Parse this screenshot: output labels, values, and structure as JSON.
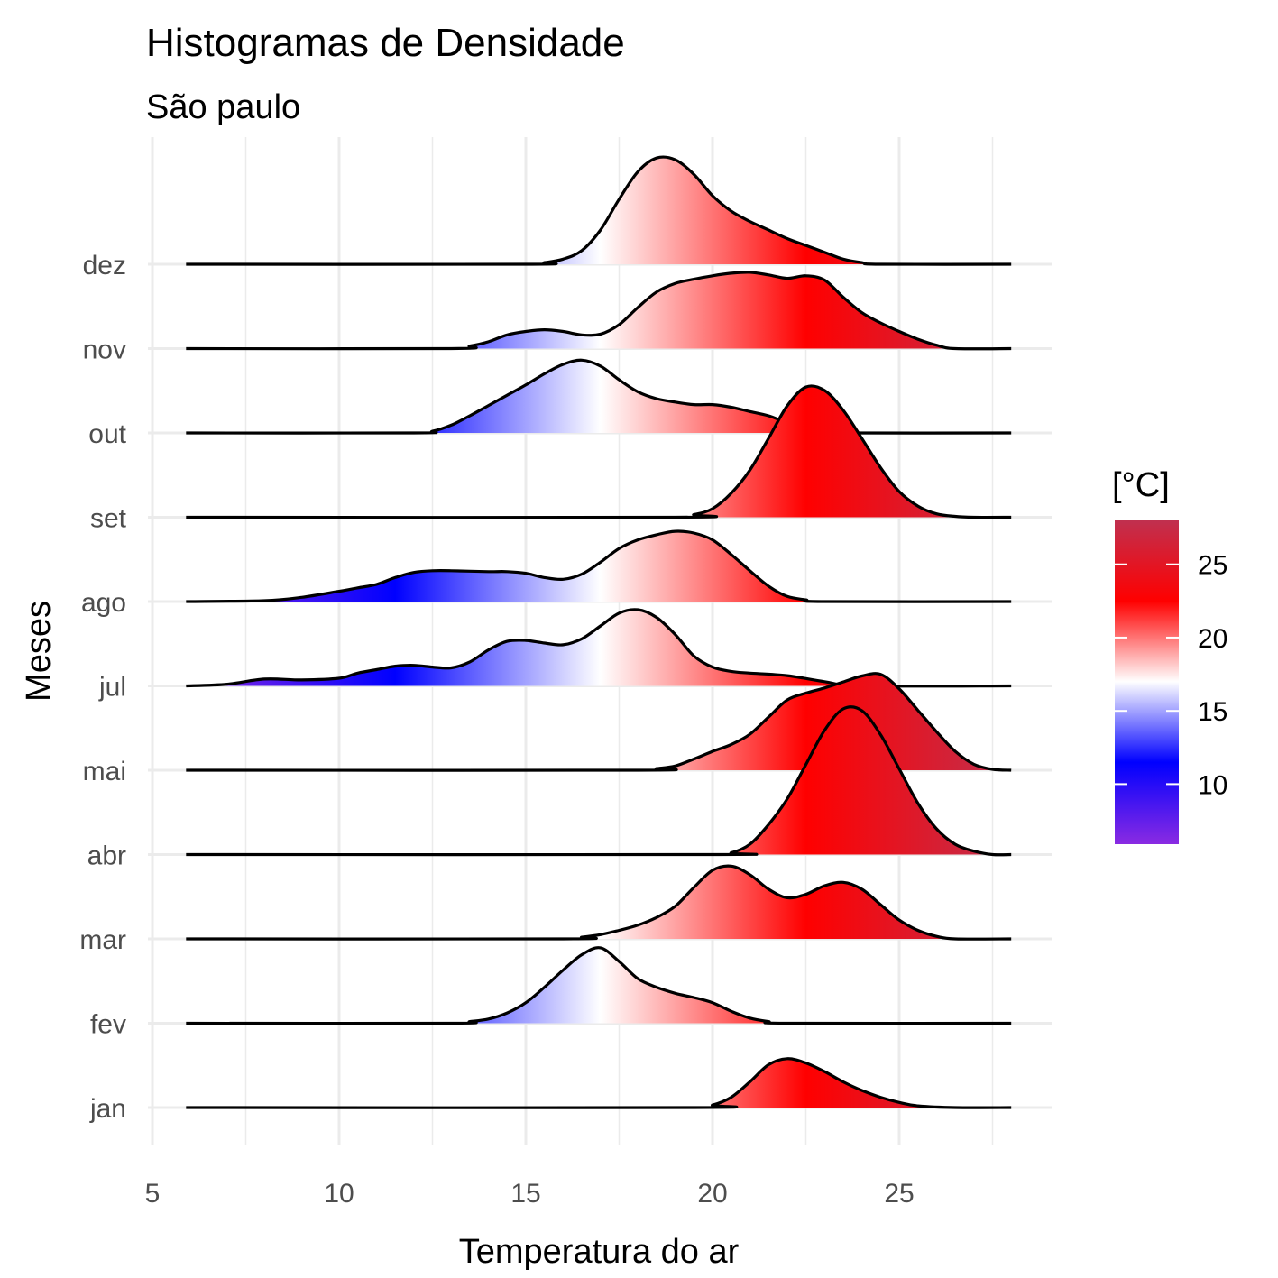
{
  "chart_data": {
    "type": "ridgeline",
    "title": "Histogramas de Densidade",
    "subtitle": "São paulo",
    "xlabel": "Temperatura do ar",
    "ylabel": "Meses",
    "xlim": [
      5,
      28
    ],
    "x_ticks": [
      5,
      10,
      15,
      20,
      25
    ],
    "x_tick_labels": [
      "5",
      "10",
      "15",
      "20",
      "25"
    ],
    "x_range": [
      5.9,
      28.0
    ],
    "grid": true,
    "legend": {
      "title": "[°C]",
      "position": "right",
      "ticks": [
        10,
        15,
        20,
        25
      ],
      "tick_labels": [
        "10",
        "15",
        "20",
        "25"
      ],
      "range": [
        5.9,
        28.0
      ]
    },
    "color_scale": [
      {
        "value": 5.9,
        "color": "#8a2be2"
      },
      {
        "value": 11.5,
        "color": "#0000ff"
      },
      {
        "value": 17.0,
        "color": "#ffffff"
      },
      {
        "value": 22.5,
        "color": "#ff0000"
      },
      {
        "value": 28.0,
        "color": "#c0304f"
      }
    ],
    "series": [
      {
        "name": "jan",
        "points": [
          [
            5.9,
            0
          ],
          [
            19.5,
            0
          ],
          [
            20,
            0.03
          ],
          [
            20.5,
            0.12
          ],
          [
            21,
            0.3
          ],
          [
            21.5,
            0.5
          ],
          [
            22,
            0.57
          ],
          [
            22.5,
            0.52
          ],
          [
            23,
            0.42
          ],
          [
            23.5,
            0.3
          ],
          [
            24,
            0.2
          ],
          [
            24.5,
            0.12
          ],
          [
            25,
            0.06
          ],
          [
            25.5,
            0.02
          ],
          [
            26.5,
            0
          ],
          [
            28,
            0
          ]
        ]
      },
      {
        "name": "fev",
        "points": [
          [
            5.9,
            0
          ],
          [
            13,
            0
          ],
          [
            13.5,
            0.02
          ],
          [
            14,
            0.05
          ],
          [
            14.5,
            0.12
          ],
          [
            15,
            0.24
          ],
          [
            15.5,
            0.42
          ],
          [
            16,
            0.62
          ],
          [
            16.5,
            0.8
          ],
          [
            17,
            0.88
          ],
          [
            17.5,
            0.72
          ],
          [
            18,
            0.52
          ],
          [
            18.5,
            0.42
          ],
          [
            19,
            0.35
          ],
          [
            19.5,
            0.3
          ],
          [
            20,
            0.24
          ],
          [
            20.5,
            0.14
          ],
          [
            21,
            0.06
          ],
          [
            21.5,
            0.02
          ],
          [
            22,
            0
          ],
          [
            28,
            0
          ]
        ]
      },
      {
        "name": "mar",
        "points": [
          [
            5.9,
            0
          ],
          [
            16,
            0
          ],
          [
            16.5,
            0.02
          ],
          [
            17,
            0.05
          ],
          [
            17.5,
            0.1
          ],
          [
            18,
            0.16
          ],
          [
            18.5,
            0.25
          ],
          [
            19,
            0.38
          ],
          [
            19.5,
            0.6
          ],
          [
            20,
            0.8
          ],
          [
            20.5,
            0.85
          ],
          [
            21,
            0.75
          ],
          [
            21.5,
            0.58
          ],
          [
            22,
            0.48
          ],
          [
            22.5,
            0.52
          ],
          [
            23,
            0.62
          ],
          [
            23.5,
            0.66
          ],
          [
            24,
            0.58
          ],
          [
            24.5,
            0.4
          ],
          [
            25,
            0.22
          ],
          [
            25.5,
            0.1
          ],
          [
            26,
            0.03
          ],
          [
            26.5,
            0
          ],
          [
            28,
            0
          ]
        ]
      },
      {
        "name": "abr",
        "points": [
          [
            5.9,
            0
          ],
          [
            20,
            0
          ],
          [
            20.5,
            0.02
          ],
          [
            21,
            0.12
          ],
          [
            21.5,
            0.35
          ],
          [
            22,
            0.65
          ],
          [
            22.5,
            1.05
          ],
          [
            23,
            1.45
          ],
          [
            23.5,
            1.7
          ],
          [
            24,
            1.68
          ],
          [
            24.5,
            1.4
          ],
          [
            25,
            1.0
          ],
          [
            25.5,
            0.6
          ],
          [
            26,
            0.3
          ],
          [
            26.5,
            0.12
          ],
          [
            27,
            0.04
          ],
          [
            27.5,
            0
          ],
          [
            28,
            0
          ]
        ]
      },
      {
        "name": "mai",
        "points": [
          [
            5.9,
            0
          ],
          [
            18,
            0
          ],
          [
            18.5,
            0.02
          ],
          [
            19,
            0.05
          ],
          [
            19.5,
            0.13
          ],
          [
            20,
            0.22
          ],
          [
            20.5,
            0.3
          ],
          [
            21,
            0.42
          ],
          [
            21.5,
            0.62
          ],
          [
            22,
            0.82
          ],
          [
            22.5,
            0.9
          ],
          [
            23,
            0.96
          ],
          [
            23.5,
            1.03
          ],
          [
            24,
            1.1
          ],
          [
            24.5,
            1.12
          ],
          [
            25,
            0.95
          ],
          [
            25.5,
            0.7
          ],
          [
            26,
            0.45
          ],
          [
            26.5,
            0.22
          ],
          [
            27,
            0.07
          ],
          [
            27.5,
            0.01
          ],
          [
            28,
            0
          ]
        ]
      },
      {
        "name": "jul",
        "points": [
          [
            5.9,
            0
          ],
          [
            7,
            0.02
          ],
          [
            8,
            0.08
          ],
          [
            9,
            0.07
          ],
          [
            10,
            0.09
          ],
          [
            10.5,
            0.15
          ],
          [
            11,
            0.19
          ],
          [
            11.5,
            0.23
          ],
          [
            12,
            0.24
          ],
          [
            12.5,
            0.22
          ],
          [
            13,
            0.21
          ],
          [
            13.5,
            0.28
          ],
          [
            14,
            0.42
          ],
          [
            14.5,
            0.52
          ],
          [
            15,
            0.53
          ],
          [
            15.5,
            0.5
          ],
          [
            16,
            0.48
          ],
          [
            16.5,
            0.55
          ],
          [
            17,
            0.7
          ],
          [
            17.5,
            0.85
          ],
          [
            18,
            0.89
          ],
          [
            18.5,
            0.8
          ],
          [
            19,
            0.6
          ],
          [
            19.5,
            0.35
          ],
          [
            20,
            0.22
          ],
          [
            20.5,
            0.17
          ],
          [
            21,
            0.15
          ],
          [
            22,
            0.12
          ],
          [
            23,
            0.05
          ],
          [
            24,
            0
          ],
          [
            28,
            0
          ]
        ]
      },
      {
        "name": "ago",
        "points": [
          [
            5.9,
            0
          ],
          [
            8,
            0.01
          ],
          [
            9,
            0.05
          ],
          [
            10,
            0.12
          ],
          [
            10.5,
            0.16
          ],
          [
            11,
            0.2
          ],
          [
            11.5,
            0.28
          ],
          [
            12,
            0.34
          ],
          [
            12.5,
            0.36
          ],
          [
            13,
            0.36
          ],
          [
            14,
            0.35
          ],
          [
            14.5,
            0.35
          ],
          [
            15,
            0.33
          ],
          [
            15.5,
            0.28
          ],
          [
            16,
            0.26
          ],
          [
            16.5,
            0.32
          ],
          [
            17,
            0.46
          ],
          [
            17.5,
            0.62
          ],
          [
            18,
            0.72
          ],
          [
            18.5,
            0.78
          ],
          [
            19,
            0.82
          ],
          [
            19.5,
            0.8
          ],
          [
            20,
            0.72
          ],
          [
            20.5,
            0.55
          ],
          [
            21,
            0.36
          ],
          [
            21.5,
            0.18
          ],
          [
            22,
            0.06
          ],
          [
            22.5,
            0.02
          ],
          [
            23,
            0
          ],
          [
            28,
            0
          ]
        ]
      },
      {
        "name": "set",
        "points": [
          [
            5.9,
            0
          ],
          [
            19,
            0
          ],
          [
            19.5,
            0.03
          ],
          [
            20,
            0.1
          ],
          [
            20.5,
            0.28
          ],
          [
            21,
            0.55
          ],
          [
            21.5,
            0.92
          ],
          [
            22,
            1.3
          ],
          [
            22.5,
            1.52
          ],
          [
            23,
            1.48
          ],
          [
            23.5,
            1.25
          ],
          [
            24,
            0.92
          ],
          [
            24.5,
            0.58
          ],
          [
            25,
            0.3
          ],
          [
            25.5,
            0.13
          ],
          [
            26,
            0.04
          ],
          [
            26.5,
            0.01
          ],
          [
            27,
            0
          ],
          [
            28,
            0
          ]
        ]
      },
      {
        "name": "out",
        "points": [
          [
            5.9,
            0
          ],
          [
            12,
            0
          ],
          [
            12.5,
            0.02
          ],
          [
            13,
            0.09
          ],
          [
            13.5,
            0.2
          ],
          [
            14,
            0.32
          ],
          [
            14.5,
            0.44
          ],
          [
            15,
            0.56
          ],
          [
            15.5,
            0.69
          ],
          [
            16,
            0.8
          ],
          [
            16.5,
            0.85
          ],
          [
            17,
            0.78
          ],
          [
            17.5,
            0.62
          ],
          [
            18,
            0.48
          ],
          [
            18.5,
            0.4
          ],
          [
            19,
            0.36
          ],
          [
            19.5,
            0.33
          ],
          [
            20,
            0.33
          ],
          [
            20.5,
            0.3
          ],
          [
            21,
            0.25
          ],
          [
            21.5,
            0.2
          ],
          [
            22,
            0.12
          ],
          [
            22.5,
            0.06
          ],
          [
            23,
            0.02
          ],
          [
            23.5,
            0
          ],
          [
            28,
            0
          ]
        ]
      },
      {
        "name": "nov",
        "points": [
          [
            5.9,
            0
          ],
          [
            13,
            0
          ],
          [
            13.5,
            0.03
          ],
          [
            14,
            0.08
          ],
          [
            14.5,
            0.16
          ],
          [
            15,
            0.2
          ],
          [
            15.5,
            0.22
          ],
          [
            16,
            0.2
          ],
          [
            16.5,
            0.16
          ],
          [
            17,
            0.17
          ],
          [
            17.5,
            0.28
          ],
          [
            18,
            0.48
          ],
          [
            18.5,
            0.66
          ],
          [
            19,
            0.76
          ],
          [
            19.5,
            0.81
          ],
          [
            20,
            0.85
          ],
          [
            20.5,
            0.88
          ],
          [
            21,
            0.89
          ],
          [
            21.5,
            0.86
          ],
          [
            22,
            0.82
          ],
          [
            22.5,
            0.85
          ],
          [
            23,
            0.8
          ],
          [
            23.5,
            0.6
          ],
          [
            24,
            0.42
          ],
          [
            24.5,
            0.3
          ],
          [
            25,
            0.2
          ],
          [
            25.5,
            0.11
          ],
          [
            26,
            0.04
          ],
          [
            26.5,
            0
          ],
          [
            28,
            0
          ]
        ]
      },
      {
        "name": "dez",
        "points": [
          [
            5.9,
            0
          ],
          [
            15,
            0
          ],
          [
            15.5,
            0.02
          ],
          [
            16,
            0.06
          ],
          [
            16.5,
            0.16
          ],
          [
            17,
            0.4
          ],
          [
            17.5,
            0.76
          ],
          [
            18,
            1.08
          ],
          [
            18.5,
            1.24
          ],
          [
            19,
            1.22
          ],
          [
            19.5,
            1.05
          ],
          [
            20,
            0.8
          ],
          [
            20.5,
            0.62
          ],
          [
            21,
            0.5
          ],
          [
            21.5,
            0.4
          ],
          [
            22,
            0.3
          ],
          [
            22.5,
            0.22
          ],
          [
            23,
            0.14
          ],
          [
            23.5,
            0.06
          ],
          [
            24,
            0.02
          ],
          [
            24.5,
            0
          ],
          [
            28,
            0
          ]
        ]
      }
    ]
  }
}
